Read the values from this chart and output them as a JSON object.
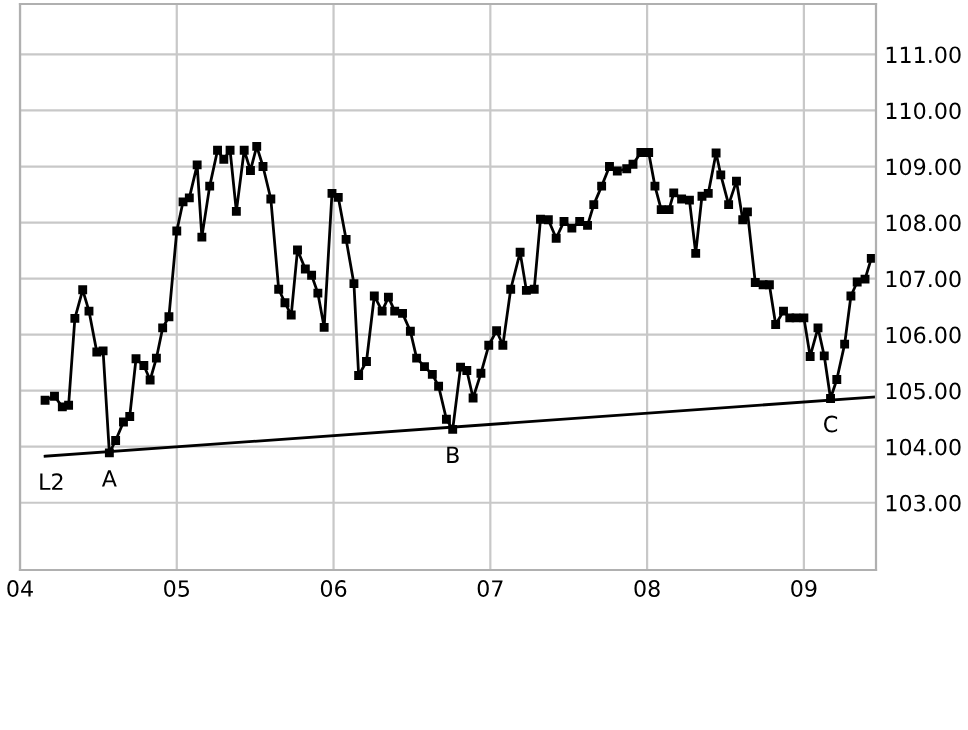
{
  "chart_data": {
    "type": "line",
    "series": [
      {
        "color": "#000000",
        "marker": "square",
        "x": [
          2004.16,
          2004.22,
          2004.27,
          2004.31,
          2004.35,
          2004.4,
          2004.44,
          2004.49,
          2004.53,
          2004.57,
          2004.61,
          2004.66,
          2004.7,
          2004.74,
          2004.79,
          2004.83,
          2004.87,
          2004.91,
          2004.95,
          2005.0,
          2005.04,
          2005.08,
          2005.13,
          2005.16,
          2005.21,
          2005.26,
          2005.3,
          2005.34,
          2005.38,
          2005.43,
          2005.47,
          2005.51,
          2005.55,
          2005.6,
          2005.65,
          2005.69,
          2005.73,
          2005.77,
          2005.82,
          2005.86,
          2005.9,
          2005.94,
          2005.99,
          2006.03,
          2006.08,
          2006.13,
          2006.16,
          2006.21,
          2006.26,
          2006.31,
          2006.35,
          2006.39,
          2006.44,
          2006.49,
          2006.53,
          2006.58,
          2006.63,
          2006.67,
          2006.72,
          2006.76,
          2006.81,
          2006.85,
          2006.89,
          2006.94,
          2006.99,
          2007.04,
          2007.08,
          2007.13,
          2007.19,
          2007.23,
          2007.28,
          2007.32,
          2007.37,
          2007.42,
          2007.47,
          2007.52,
          2007.57,
          2007.62,
          2007.66,
          2007.71,
          2007.76,
          2007.81,
          2007.87,
          2007.91,
          2007.96,
          2008.01,
          2008.05,
          2008.09,
          2008.14,
          2008.17,
          2008.22,
          2008.27,
          2008.31,
          2008.35,
          2008.39,
          2008.44,
          2008.47,
          2008.52,
          2008.57,
          2008.61,
          2008.64,
          2008.69,
          2008.74,
          2008.78,
          2008.82,
          2008.87,
          2008.91,
          2008.95,
          2009.0,
          2009.04,
          2009.09,
          2009.13,
          2009.17,
          2009.21,
          2009.26,
          2009.3,
          2009.34,
          2009.39,
          2009.43
        ],
        "values": [
          104.83,
          104.9,
          104.71,
          104.74,
          106.29,
          106.8,
          106.42,
          105.69,
          105.71,
          103.89,
          104.11,
          104.44,
          104.54,
          105.57,
          105.45,
          105.19,
          105.58,
          106.12,
          106.32,
          107.85,
          108.37,
          108.44,
          109.03,
          107.74,
          108.65,
          109.29,
          109.13,
          109.29,
          108.2,
          109.29,
          108.93,
          109.36,
          109.0,
          108.42,
          106.81,
          106.57,
          106.35,
          107.51,
          107.17,
          107.06,
          106.74,
          106.13,
          108.52,
          108.45,
          107.7,
          106.91,
          105.27,
          105.52,
          106.69,
          106.42,
          106.67,
          106.42,
          106.38,
          106.06,
          105.58,
          105.43,
          105.29,
          105.08,
          104.49,
          104.31,
          105.42,
          105.36,
          104.87,
          105.31,
          105.81,
          106.07,
          105.81,
          106.81,
          107.47,
          106.79,
          106.81,
          108.06,
          108.05,
          107.72,
          108.02,
          107.9,
          108.02,
          107.95,
          108.32,
          108.65,
          109.0,
          108.92,
          108.96,
          109.04,
          109.25,
          109.25,
          108.65,
          108.23,
          108.23,
          108.53,
          108.42,
          108.4,
          107.45,
          108.47,
          108.52,
          109.24,
          108.85,
          108.32,
          108.74,
          108.05,
          108.19,
          106.93,
          106.89,
          106.89,
          106.18,
          106.42,
          106.3,
          106.3,
          106.3,
          105.61,
          106.12,
          105.62,
          104.86,
          105.2,
          105.83,
          106.69,
          106.94,
          106.99,
          107.36
        ]
      },
      {
        "color": "#000000",
        "marker": "none",
        "x": [
          2004.16,
          2009.46
        ],
        "values": [
          103.83,
          104.89
        ]
      }
    ],
    "xlim": [
      2004.0,
      2009.46
    ],
    "xticks": [
      {
        "value": 2004,
        "label": "04"
      },
      {
        "value": 2005,
        "label": "05"
      },
      {
        "value": 2006,
        "label": "06"
      },
      {
        "value": 2007,
        "label": "07"
      },
      {
        "value": 2008,
        "label": "08"
      },
      {
        "value": 2009,
        "label": "09"
      }
    ],
    "ylim": [
      101.8,
      111.9
    ],
    "yticks": [
      {
        "value": 103,
        "label": "103.00"
      },
      {
        "value": 104,
        "label": "104.00"
      },
      {
        "value": 105,
        "label": "105.00"
      },
      {
        "value": 106,
        "label": "106.00"
      },
      {
        "value": 107,
        "label": "107.00"
      },
      {
        "value": 108,
        "label": "108.00"
      },
      {
        "value": 109,
        "label": "109.00"
      },
      {
        "value": 110,
        "label": "110.00"
      },
      {
        "value": 111,
        "label": "111.00"
      }
    ],
    "annotations": [
      {
        "text": "L2",
        "x": 2004.2,
        "y": 103.83
      },
      {
        "text": "A",
        "x": 2004.57,
        "y": 103.89
      },
      {
        "text": "B",
        "x": 2006.76,
        "y": 104.31
      },
      {
        "text": "C",
        "x": 2009.17,
        "y": 104.86
      }
    ],
    "grid": true,
    "line_style": "solid"
  }
}
